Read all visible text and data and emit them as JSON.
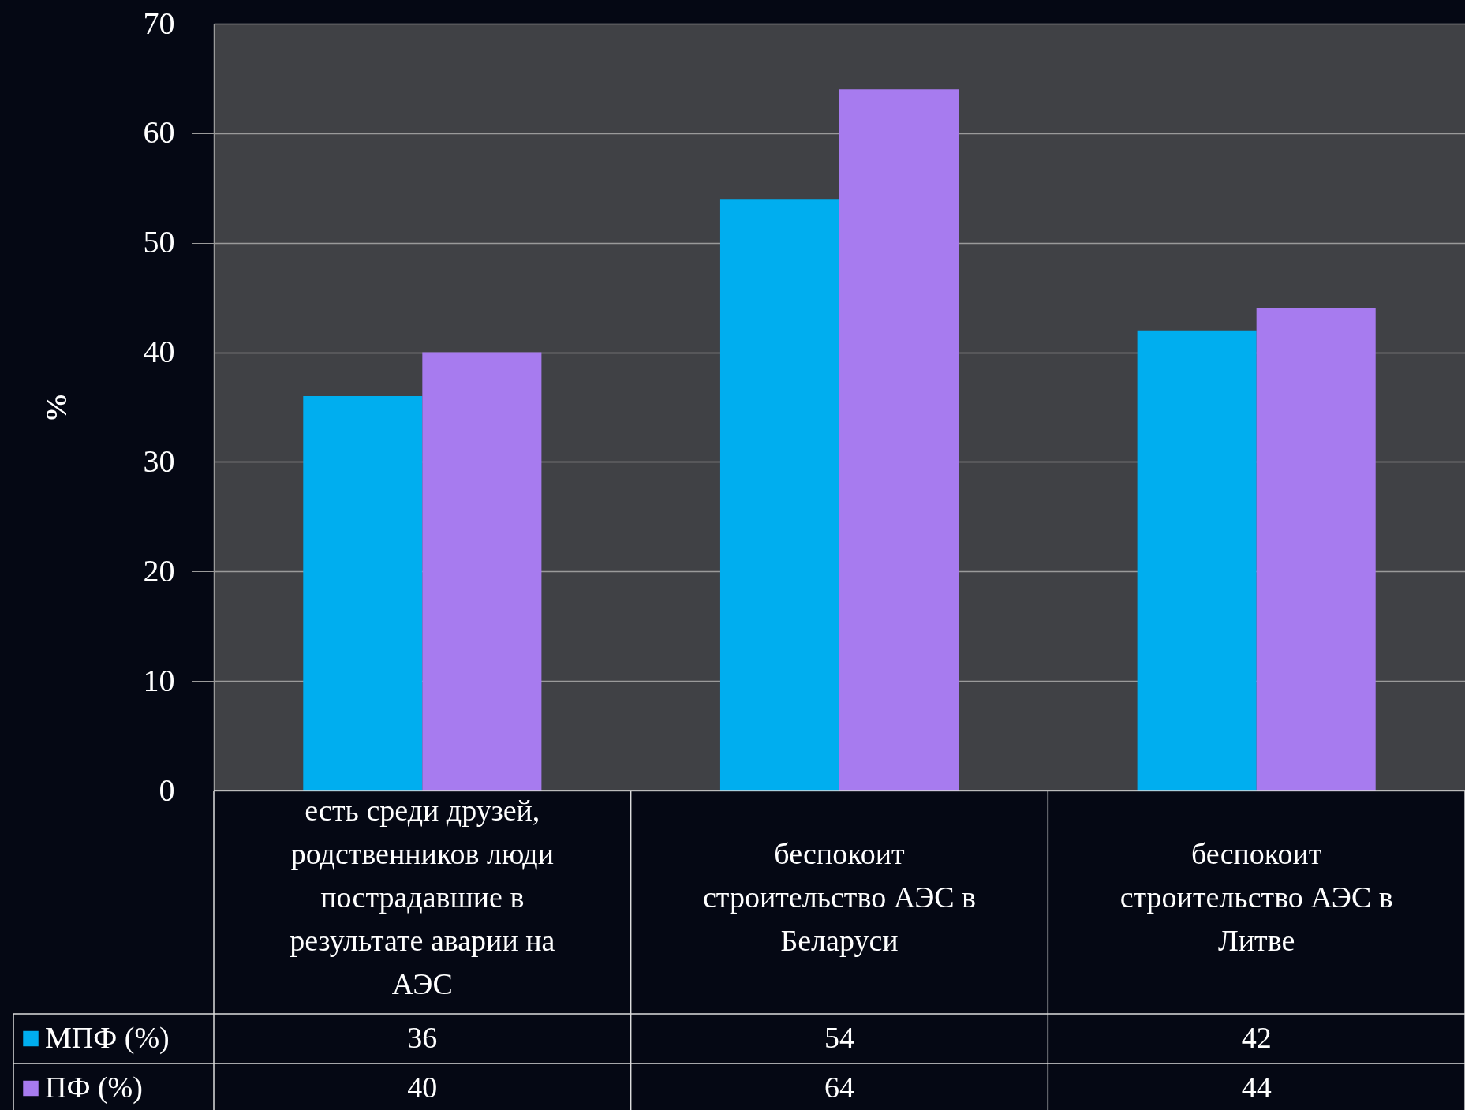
{
  "chart_data": {
    "type": "bar",
    "ylabel": "%",
    "categories": [
      "есть  среди  друзей, родственников  люди пострадавшие в результате аварии на АЭС",
      "беспокоит строительство АЭС в Беларуси",
      "беспокоит строительство АЭС в Литве"
    ],
    "series": [
      {
        "name": "МПФ (%)",
        "color": "#00aeef",
        "values": [
          36,
          54,
          42
        ]
      },
      {
        "name": "ПФ (%)",
        "color": "#a77bef",
        "values": [
          40,
          64,
          44
        ]
      }
    ],
    "ylim": [
      0,
      70
    ],
    "yticks": [
      0,
      10,
      20,
      30,
      40,
      50,
      60,
      70
    ],
    "grid": true,
    "legend": "bottom",
    "data_labels": true
  }
}
